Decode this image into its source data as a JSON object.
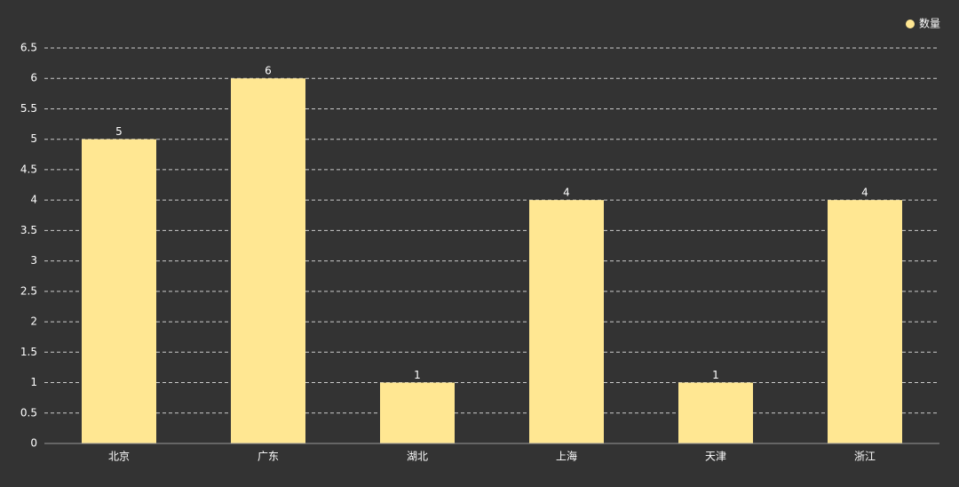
{
  "chart_data": {
    "type": "bar",
    "categories": [
      "北京",
      "广东",
      "湖北",
      "上海",
      "天津",
      "浙江"
    ],
    "series": [
      {
        "name": "数量",
        "color": "#ffe792",
        "values": [
          5,
          6,
          1,
          4,
          1,
          4
        ]
      }
    ],
    "ylim": [
      0,
      6.5
    ],
    "yticks": [
      0,
      0.5,
      1,
      1.5,
      2,
      2.5,
      3,
      3.5,
      4,
      4.5,
      5,
      5.5,
      6,
      6.5
    ],
    "grid": true,
    "legend": "top-right",
    "data_labels": true
  }
}
